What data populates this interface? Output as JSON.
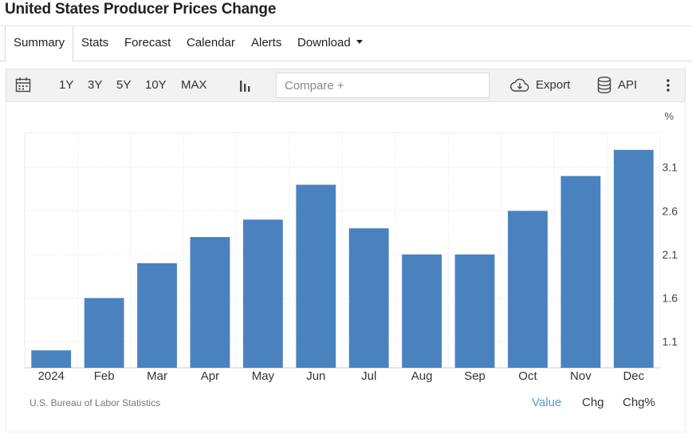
{
  "page_title": "United States Producer Prices Change",
  "tabs": [
    {
      "label": "Summary",
      "active": true
    },
    {
      "label": "Stats"
    },
    {
      "label": "Forecast"
    },
    {
      "label": "Calendar"
    },
    {
      "label": "Alerts"
    },
    {
      "label": "Download",
      "has_dropdown": true
    }
  ],
  "toolbar": {
    "calendar_icon": "calendar-icon",
    "ranges": [
      "1Y",
      "3Y",
      "5Y",
      "10Y",
      "MAX"
    ],
    "chart_type_icon": "bar-chart-icon",
    "compare_placeholder": "Compare +",
    "export_label": "Export",
    "export_icon": "cloud-download-icon",
    "api_label": "API",
    "api_icon": "database-icon",
    "more_icon": "vertical-dots-icon"
  },
  "source": "U.S. Bureau of Labor Statistics",
  "value_toggles": [
    {
      "label": "Value",
      "selected": true
    },
    {
      "label": "Chg"
    },
    {
      "label": "Chg%"
    }
  ],
  "colors": {
    "bar": "#4a82bf",
    "accent": "#5b9ac6",
    "grid": "#e8e8e8"
  },
  "chart_data": {
    "type": "bar",
    "unit": "%",
    "categories": [
      "2024",
      "Feb",
      "Mar",
      "Apr",
      "May",
      "Jun",
      "Jul",
      "Aug",
      "Sep",
      "Oct",
      "Nov",
      "Dec"
    ],
    "values": [
      1.0,
      1.6,
      2.0,
      2.3,
      2.5,
      2.9,
      2.4,
      2.1,
      2.1,
      2.6,
      3.0,
      3.3
    ],
    "yticks": [
      1.1,
      1.6,
      2.1,
      2.6,
      3.1
    ],
    "ylim": [
      0.8,
      3.5
    ],
    "y_axis_position": "right",
    "grid": true
  }
}
